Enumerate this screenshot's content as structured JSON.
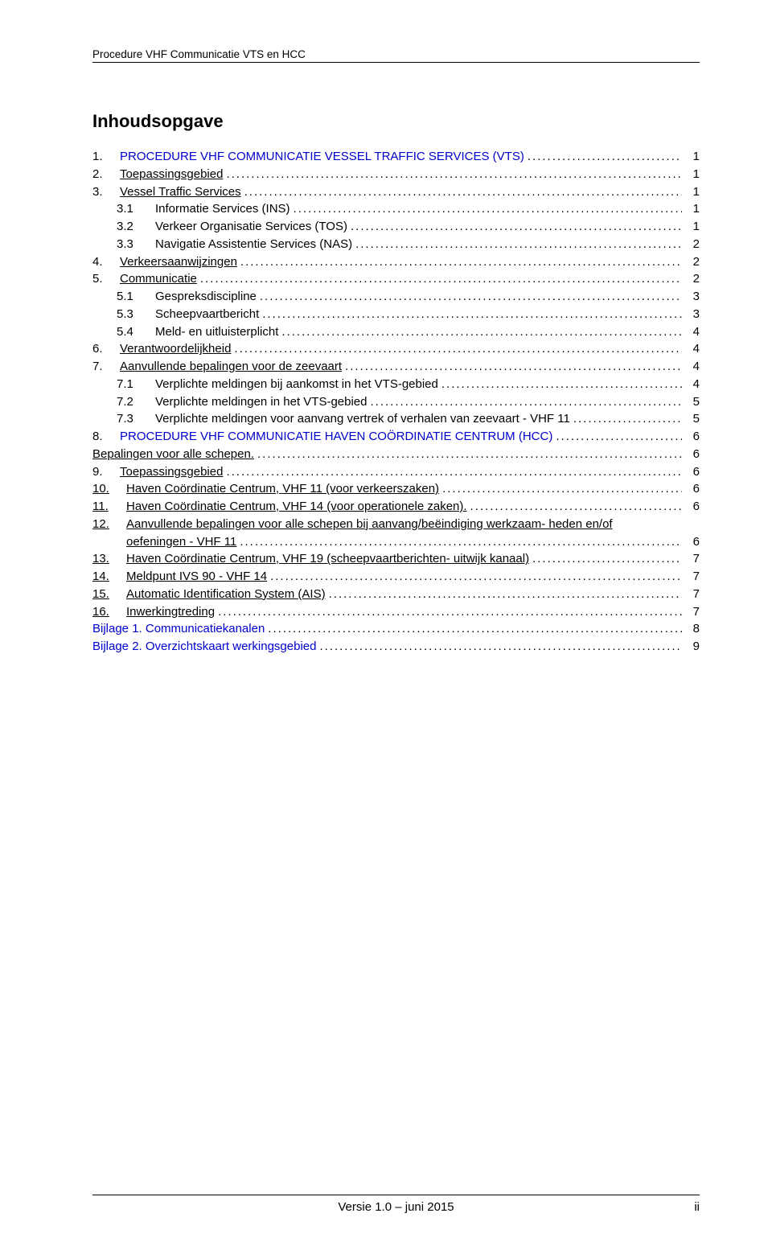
{
  "running_head": "Procedure VHF Communicatie VTS en HCC",
  "toc_title": "Inhoudsopgave",
  "footer": {
    "center": "Versie 1.0 – juni 2015",
    "right": "ii"
  },
  "colors": {
    "heading_blue": "#0000cd",
    "text": "#000000",
    "background": "#ffffff",
    "rule": "#000000"
  },
  "fonts": {
    "family": "Arial",
    "body_pt": 11,
    "title_pt": 16
  },
  "toc": [
    {
      "num": "1.",
      "label": "PROCEDURE VHF COMMUNICATIE VESSEL TRAFFIC SERVICES (VTS)",
      "page": "1",
      "level": 1,
      "style": "blue"
    },
    {
      "num": "2.",
      "label": "Toepassingsgebied",
      "page": "1",
      "level": 1,
      "style": "link"
    },
    {
      "num": "3.",
      "label": "Vessel Traffic Services",
      "page": "1",
      "level": 1,
      "style": "link"
    },
    {
      "num": "3.1",
      "label": "Informatie Services (INS)",
      "page": "1",
      "level": 2,
      "style": "plain"
    },
    {
      "num": "3.2",
      "label": "Verkeer Organisatie Services (TOS)",
      "page": "1",
      "level": 2,
      "style": "plain"
    },
    {
      "num": "3.3",
      "label": "Navigatie Assistentie Services (NAS)",
      "page": "2",
      "level": 2,
      "style": "plain"
    },
    {
      "num": "4.",
      "label": "Verkeersaanwijzingen",
      "page": "2",
      "level": 1,
      "style": "link"
    },
    {
      "num": "5.",
      "label": "Communicatie",
      "page": "2",
      "level": 1,
      "style": "link"
    },
    {
      "num": "5.1",
      "label": "Gespreksdiscipline",
      "page": "3",
      "level": 2,
      "style": "plain"
    },
    {
      "num": "5.3",
      "label": "Scheepvaartbericht",
      "page": "3",
      "level": 2,
      "style": "plain"
    },
    {
      "num": "5.4",
      "label": "Meld- en uitluisterplicht",
      "page": "4",
      "level": 2,
      "style": "plain"
    },
    {
      "num": "6.",
      "label": "Verantwoordelijkheid",
      "page": "4",
      "level": 1,
      "style": "link"
    },
    {
      "num": "7.",
      "label": "Aanvullende bepalingen voor de zeevaart",
      "page": "4",
      "level": 1,
      "style": "link"
    },
    {
      "num": "7.1",
      "label": "Verplichte meldingen bij aankomst in het VTS-gebied",
      "page": "4",
      "level": 2,
      "style": "plain"
    },
    {
      "num": "7.2",
      "label": "Verplichte meldingen in het VTS-gebied",
      "page": "5",
      "level": 2,
      "style": "plain"
    },
    {
      "num": "7.3",
      "label": "Verplichte meldingen voor aanvang vertrek of verhalen van zeevaart - VHF 11",
      "page": "5",
      "level": 2,
      "style": "plain"
    },
    {
      "num": "8.",
      "label": "PROCEDURE  VHF COMMUNICATIE  HAVEN COÖRDINATIE CENTRUM (HCC)",
      "page": "6",
      "level": 1,
      "style": "blue"
    },
    {
      "num": "",
      "label": "Bepalingen voor alle schepen.",
      "page": "6",
      "level": 0,
      "style": "link"
    },
    {
      "num": "9.",
      "label": "Toepassingsgebied",
      "page": "6",
      "level": 1,
      "style": "link"
    },
    {
      "num": "10.",
      "label": "Haven Coördinatie Centrum, VHF 11 (voor verkeerszaken)",
      "page": "6",
      "level": 1,
      "style": "link",
      "wide": true
    },
    {
      "num": "11.",
      "label": "Haven Coördinatie Centrum, VHF 14 (voor operationele zaken).",
      "page": "6",
      "level": 1,
      "style": "link",
      "wide": true
    },
    {
      "num": "12.",
      "label_lines": [
        "Aanvullende bepalingen voor alle schepen bij aanvang/beëindiging werkzaam-    heden en/of",
        "oefeningen - VHF 11"
      ],
      "page": "6",
      "level": 1,
      "style": "link",
      "wide": true
    },
    {
      "num": "13.",
      "label": "Haven Coördinatie Centrum, VHF 19 (scheepvaartberichten- uitwijk kanaal)",
      "page": "7",
      "level": 1,
      "style": "link",
      "wide": true
    },
    {
      "num": "14.",
      "label": "Meldpunt IVS 90 - VHF 14",
      "page": "7",
      "level": 1,
      "style": "link",
      "wide": true
    },
    {
      "num": "15.",
      "label": "Automatic Identification System (AIS)",
      "page": "7",
      "level": 1,
      "style": "link",
      "wide": true
    },
    {
      "num": "16.",
      "label": "Inwerkingtreding",
      "page": "7",
      "level": 1,
      "style": "link",
      "wide": true
    },
    {
      "num": "",
      "label": "Bijlage 1. Communicatiekanalen",
      "page": "8",
      "level": 0,
      "style": "blue-plain"
    },
    {
      "num": "",
      "label": "Bijlage 2. Overzichtskaart werkingsgebied",
      "page": "9",
      "level": 0,
      "style": "blue-plain"
    }
  ]
}
